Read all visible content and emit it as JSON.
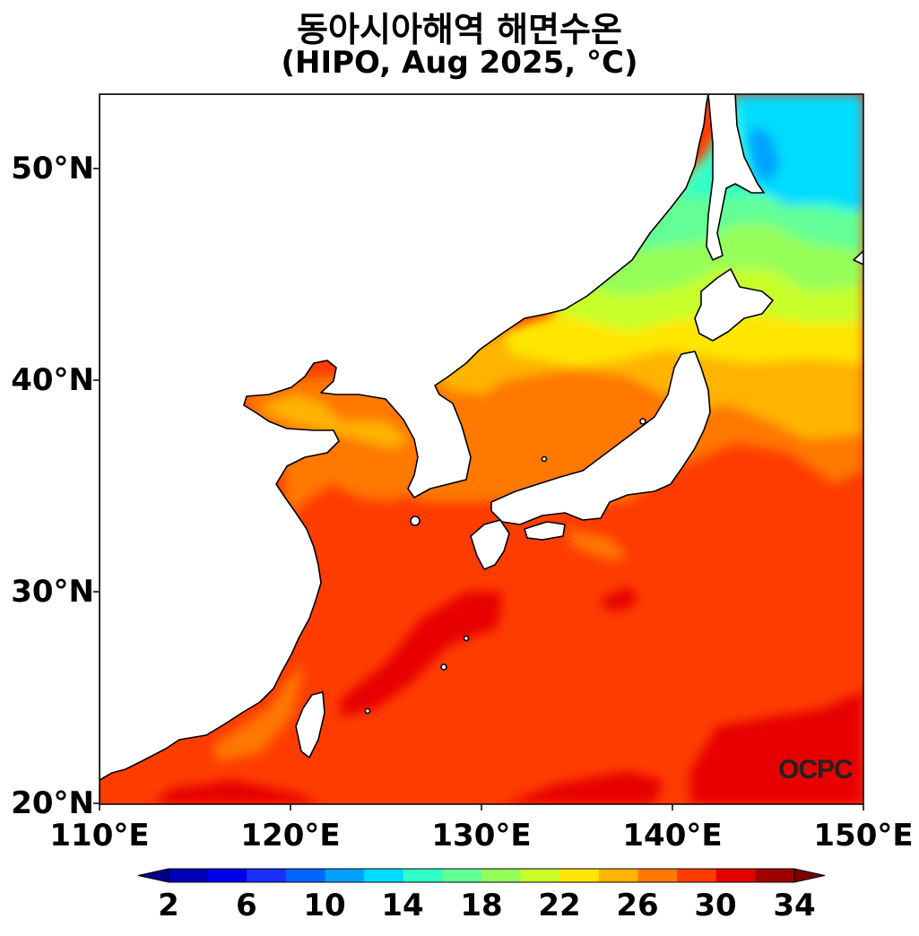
{
  "title": {
    "line1": "동아시아해역 해면수온",
    "line2": "(HIPO, Aug 2025, °C)"
  },
  "map": {
    "lon_range": [
      110,
      150
    ],
    "lat_range": [
      20,
      53.5
    ],
    "lat_ticks": [
      "20°N",
      "30°N",
      "40°N",
      "50°N"
    ],
    "lon_ticks": [
      "110°E",
      "120°E",
      "130°E",
      "140°E",
      "150°E"
    ],
    "watermark": "OCPC",
    "land_color": "#ffffff",
    "coastline_color": "#000000"
  },
  "colorbar": {
    "tick_labels": [
      "2",
      "6",
      "10",
      "14",
      "18",
      "22",
      "26",
      "30",
      "34"
    ],
    "bounds": [
      2,
      34
    ],
    "step": 2,
    "colors": [
      "#0000b4",
      "#0000ee",
      "#1a30ff",
      "#0064ff",
      "#00a0ff",
      "#00dcff",
      "#30ffc8",
      "#64ff96",
      "#96ff5a",
      "#c8ff2a",
      "#ffe600",
      "#ffb400",
      "#ff7800",
      "#ff3c00",
      "#e60000",
      "#a00000"
    ],
    "extend": "both"
  }
}
